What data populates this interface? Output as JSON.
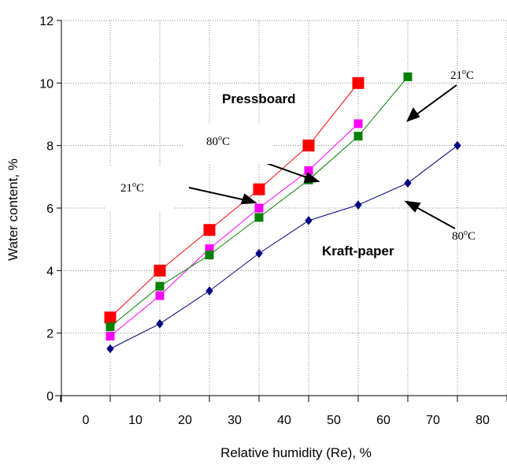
{
  "chart_data": {
    "type": "line",
    "xlabel": "Relative humidity (Re), %",
    "ylabel": "Water content, %",
    "xticks": [
      "0",
      "10",
      "20",
      "30",
      "40",
      "50",
      "60",
      "70",
      "80"
    ],
    "yticks": [
      "0",
      "2",
      "4",
      "6",
      "8",
      "10",
      "12"
    ],
    "ylim": [
      0,
      12
    ],
    "grid": "dotted",
    "series": [
      {
        "color": "#ff0000",
        "marker": "square-large",
        "x": [
          10,
          20,
          30,
          40,
          50,
          60
        ],
        "y": [
          2.5,
          4.0,
          5.3,
          6.6,
          8.0,
          10.0
        ]
      },
      {
        "color": "#ff00ff",
        "marker": "square",
        "x": [
          10,
          20,
          30,
          40,
          50,
          60
        ],
        "y": [
          1.9,
          3.2,
          4.7,
          6.0,
          7.2,
          8.7
        ]
      },
      {
        "color": "#008000",
        "marker": "square",
        "x": [
          10,
          20,
          30,
          40,
          50,
          60,
          70
        ],
        "y": [
          2.2,
          3.5,
          4.5,
          5.7,
          6.9,
          8.3,
          10.2
        ]
      },
      {
        "color": "#000080",
        "marker": "diamond",
        "x": [
          10,
          20,
          30,
          40,
          50,
          60,
          70,
          80
        ],
        "y": [
          1.5,
          2.3,
          3.35,
          4.55,
          5.6,
          6.1,
          6.8,
          8.0
        ]
      }
    ],
    "annotations": {
      "pressboard": "Pressboard",
      "kraft": "Kraft-paper",
      "temp_21": "21",
      "temp_80": "80",
      "degree": "o",
      "celsius": "C"
    }
  }
}
